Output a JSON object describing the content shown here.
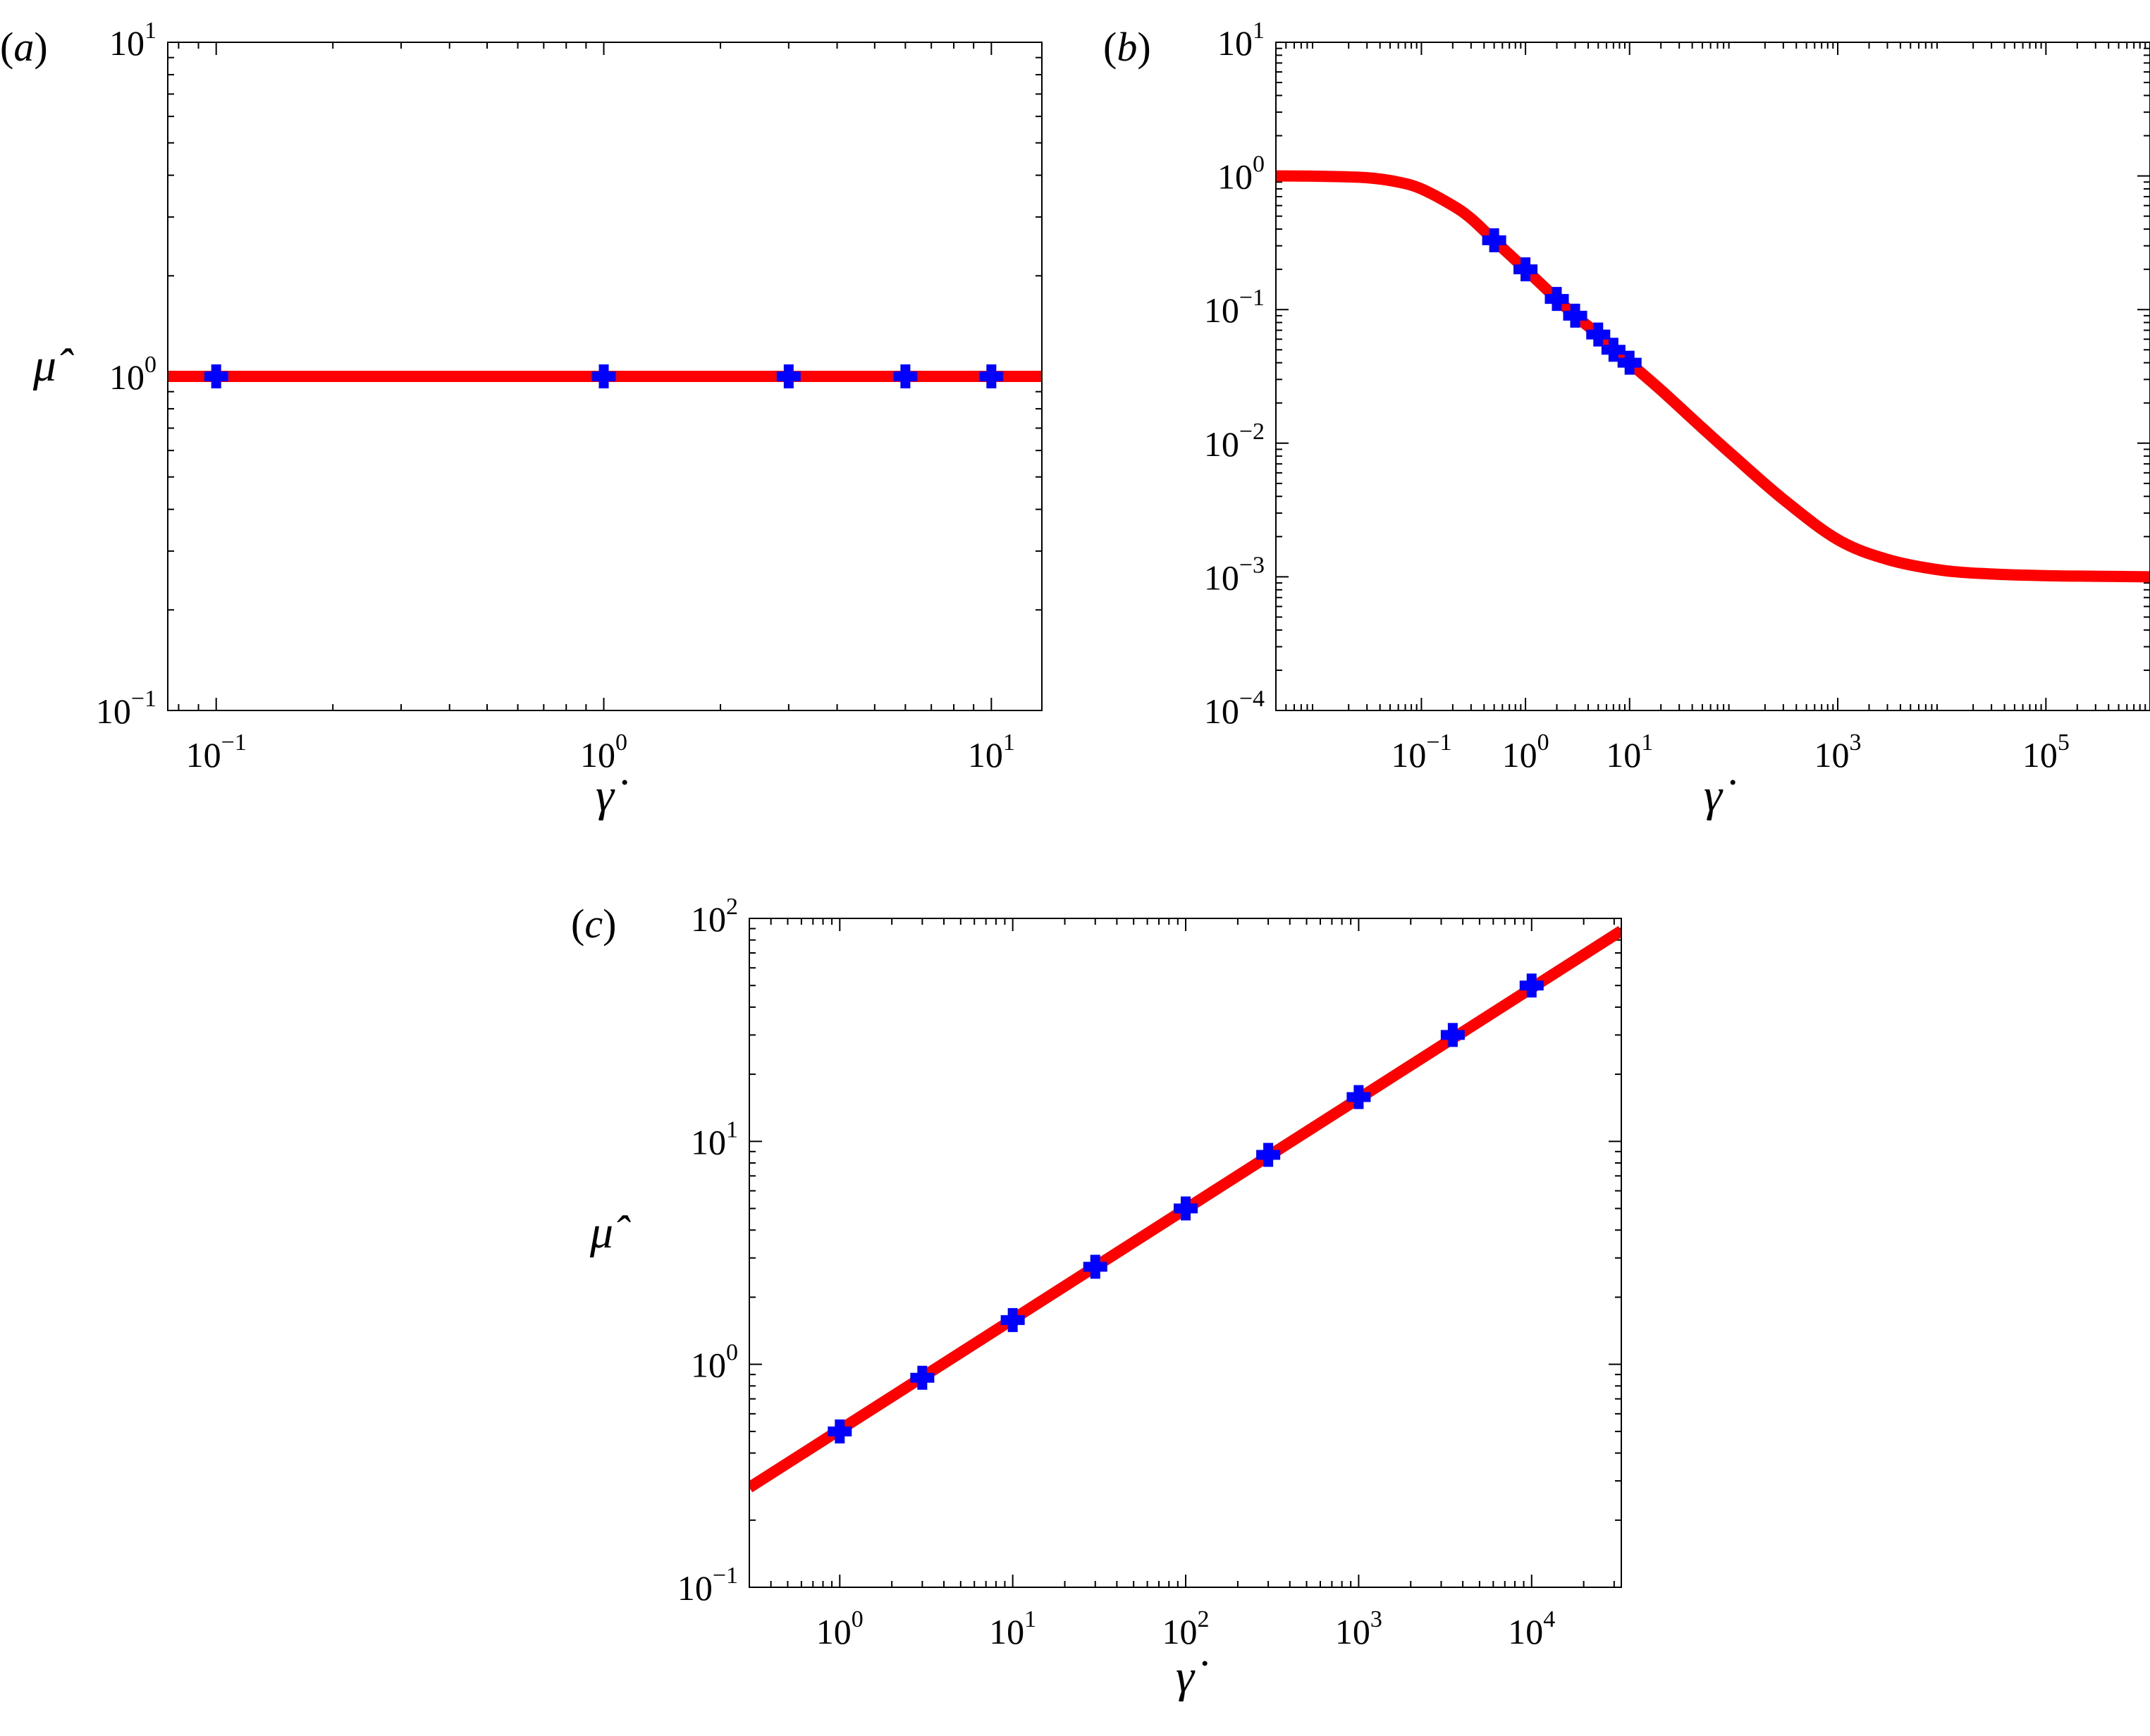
{
  "chart_data": [
    {
      "panel": "(a)",
      "type": "line",
      "xlabel": "γ̇",
      "ylabel": "μ̂",
      "xscale": "log",
      "yscale": "log",
      "xlim": [
        0.075,
        13.5
      ],
      "ylim": [
        0.1,
        10
      ],
      "xticks": [
        {
          "value": 0.1,
          "base": "10",
          "exp": "−1"
        },
        {
          "value": 1,
          "base": "10",
          "exp": "0"
        },
        {
          "value": 10,
          "base": "10",
          "exp": "1"
        }
      ],
      "yticks": [
        {
          "value": 0.1,
          "base": "10",
          "exp": "−1"
        },
        {
          "value": 1,
          "base": "10",
          "exp": "0"
        },
        {
          "value": 10,
          "base": "10",
          "exp": "1"
        }
      ],
      "series": [
        {
          "kind": "line",
          "color": "#ff0000",
          "x": [
            0.075,
            13.5
          ],
          "y": [
            1,
            1
          ]
        },
        {
          "kind": "scatter",
          "marker": "square-cross",
          "color": "#0000ff",
          "x": [
            0.1,
            1,
            3,
            6,
            10
          ],
          "y": [
            1,
            1,
            1,
            1,
            1
          ]
        }
      ]
    },
    {
      "panel": "(b)",
      "type": "line",
      "xlabel": "γ̇",
      "ylabel": "",
      "xscale": "log",
      "yscale": "log",
      "xlim": [
        0.004,
        1000000
      ],
      "ylim": [
        0.0001,
        10
      ],
      "xticks": [
        {
          "value": 0.1,
          "base": "10",
          "exp": "−1"
        },
        {
          "value": 1,
          "base": "10",
          "exp": "0"
        },
        {
          "value": 10,
          "base": "10",
          "exp": "1"
        },
        {
          "value": 1000,
          "base": "10",
          "exp": "3"
        },
        {
          "value": 100000,
          "base": "10",
          "exp": "5"
        }
      ],
      "yticks": [
        {
          "value": 0.0001,
          "base": "10",
          "exp": "−4"
        },
        {
          "value": 0.001,
          "base": "10",
          "exp": "−3"
        },
        {
          "value": 0.01,
          "base": "10",
          "exp": "−2"
        },
        {
          "value": 0.1,
          "base": "10",
          "exp": "−1"
        },
        {
          "value": 1,
          "base": "10",
          "exp": "0"
        },
        {
          "value": 10,
          "base": "10",
          "exp": "1"
        }
      ],
      "series": [
        {
          "kind": "line",
          "color": "#ff0000",
          "x": [
            0.004,
            0.01,
            0.03,
            0.06,
            0.1,
            0.2,
            0.3,
            0.5,
            1,
            2,
            3,
            5,
            10,
            20,
            50,
            100,
            300,
            1000,
            3000,
            10000,
            30000,
            100000,
            300000,
            1000000
          ],
          "y": [
            1.0,
            0.995,
            0.97,
            0.9,
            0.8,
            0.6,
            0.48,
            0.33,
            0.2,
            0.12,
            0.09,
            0.065,
            0.04,
            0.025,
            0.013,
            0.008,
            0.0038,
            0.0019,
            0.00135,
            0.00112,
            0.00105,
            0.00102,
            0.00101,
            0.001
          ]
        },
        {
          "kind": "scatter",
          "marker": "square-cross",
          "color": "#0000ff",
          "x": [
            0.5,
            1,
            2,
            3,
            5,
            7,
            10
          ],
          "y": [
            0.33,
            0.2,
            0.12,
            0.09,
            0.065,
            0.05,
            0.04
          ]
        }
      ]
    },
    {
      "panel": "(c)",
      "type": "line",
      "xlabel": "γ̇",
      "ylabel": "μ̂",
      "xscale": "log",
      "yscale": "log",
      "xlim": [
        0.3,
        33000
      ],
      "ylim": [
        0.1,
        100
      ],
      "xticks": [
        {
          "value": 1,
          "base": "10",
          "exp": "0"
        },
        {
          "value": 10,
          "base": "10",
          "exp": "1"
        },
        {
          "value": 100,
          "base": "10",
          "exp": "2"
        },
        {
          "value": 1000,
          "base": "10",
          "exp": "3"
        },
        {
          "value": 10000,
          "base": "10",
          "exp": "4"
        }
      ],
      "yticks": [
        {
          "value": 0.1,
          "base": "10",
          "exp": "−1"
        },
        {
          "value": 1,
          "base": "10",
          "exp": "0"
        },
        {
          "value": 10,
          "base": "10",
          "exp": "1"
        },
        {
          "value": 100,
          "base": "10",
          "exp": "2"
        }
      ],
      "series": [
        {
          "kind": "line",
          "color": "#ff0000",
          "x": [
            0.3,
            33000
          ],
          "y": [
            0.28,
            88
          ]
        },
        {
          "kind": "scatter",
          "marker": "square-cross",
          "color": "#0000ff",
          "x": [
            1,
            3,
            10,
            30,
            100,
            300,
            1000,
            3500,
            10000
          ],
          "y": [
            0.5,
            0.87,
            1.58,
            2.74,
            5.0,
            8.7,
            15.8,
            30,
            50
          ]
        }
      ]
    }
  ]
}
